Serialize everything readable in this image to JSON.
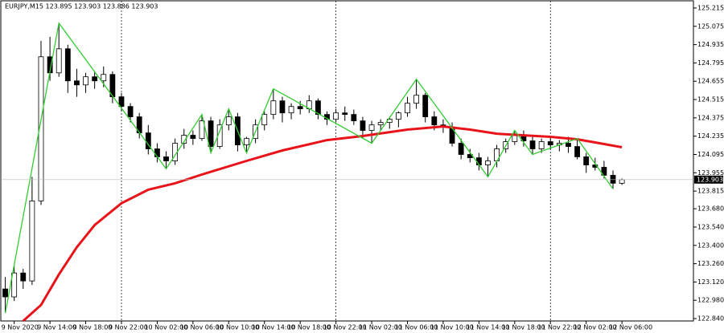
{
  "chart_data": {
    "type": "candlestick",
    "title": "EURJPY,M15  123.895 123.903 123.886 123.903",
    "current_price": {
      "value": 123.903,
      "label": "123.903"
    },
    "ylim": [
      122.822,
      125.27
    ],
    "yticks": [
      125.215,
      125.075,
      124.935,
      124.795,
      124.655,
      124.515,
      124.375,
      124.235,
      124.095,
      123.955,
      123.815,
      {
        "value": 123.68,
        "label": "123.680"
      },
      {
        "value": 123.54,
        "label": "123.540"
      },
      {
        "value": 123.4,
        "label": "123.400"
      },
      {
        "value": 123.26,
        "label": "123.260"
      },
      {
        "value": 123.12,
        "label": "123.120"
      },
      {
        "value": 122.98,
        "label": "122.980"
      },
      {
        "value": 122.84,
        "label": "122.840"
      }
    ],
    "xlim": [
      -0.5,
      77
    ],
    "xticks": [
      {
        "value": 1,
        "label": "9 Nov 2020"
      },
      {
        "value": 5,
        "label": "9 Nov 14:00"
      },
      {
        "value": 9,
        "label": "9 Nov 18:00"
      },
      {
        "value": 13,
        "label": "9 Nov 22:00"
      },
      {
        "value": 17,
        "label": "10 Nov 02:00"
      },
      {
        "value": 21,
        "label": "10 Nov 06:00"
      },
      {
        "value": 25,
        "label": "10 Nov 10:00"
      },
      {
        "value": 29,
        "label": "10 Nov 14:00"
      },
      {
        "value": 33,
        "label": "10 Nov 18:00"
      },
      {
        "value": 37,
        "label": "10 Nov 22:00"
      },
      {
        "value": 41,
        "label": "11 Nov 02:00"
      },
      {
        "value": 45,
        "label": "11 Nov 06:00"
      },
      {
        "value": 49,
        "label": "11 Nov 10:00"
      },
      {
        "value": 53,
        "label": "11 Nov 14:00"
      },
      {
        "value": 57,
        "label": "11 Nov 18:00"
      },
      {
        "value": 61,
        "label": "11 Nov 22:00"
      },
      {
        "value": 65,
        "label": "12 Nov 02:00"
      },
      {
        "value": 69,
        "label": "12 Nov 06:00"
      }
    ],
    "separators": [
      13,
      37,
      61
    ],
    "candle_color": "#000000",
    "open": [
      123.067,
      123.006,
      123.189,
      123.128,
      123.74,
      124.842,
      124.719,
      124.903,
      124.658,
      124.627,
      124.689,
      124.658,
      124.707,
      124.536,
      124.462,
      124.383,
      124.26,
      124.138,
      124.077,
      124.046,
      124.181,
      124.242,
      124.217,
      124.352,
      124.156,
      124.321,
      124.383,
      124.168,
      124.217,
      124.321,
      124.401,
      124.505,
      124.413,
      124.462,
      124.444,
      124.505,
      124.401,
      124.364,
      124.413,
      124.401,
      124.352,
      124.279,
      124.321,
      124.34,
      124.364,
      124.413,
      124.487,
      124.548,
      124.383,
      124.321,
      124.303,
      124.181,
      124.095,
      124.07,
      124.015,
      124.046,
      124.138,
      124.193,
      124.242,
      124.199,
      124.138,
      124.193,
      124.168,
      124.181,
      124.156,
      124.077,
      124.015,
      123.997,
      123.936,
      123.875
    ],
    "high": [
      123.159,
      123.25,
      123.22,
      123.924,
      124.964,
      124.995,
      125.099,
      124.934,
      124.75,
      124.719,
      124.731,
      124.768,
      124.731,
      124.566,
      124.487,
      124.413,
      124.321,
      124.181,
      124.119,
      124.217,
      124.291,
      124.279,
      124.401,
      124.383,
      124.364,
      124.444,
      124.413,
      124.23,
      124.364,
      124.425,
      124.597,
      124.536,
      124.487,
      124.505,
      124.548,
      124.523,
      124.425,
      124.444,
      124.462,
      124.438,
      124.383,
      124.352,
      124.364,
      124.383,
      124.425,
      124.536,
      124.67,
      124.566,
      124.425,
      124.364,
      124.34,
      124.217,
      124.138,
      124.107,
      124.077,
      124.168,
      124.217,
      124.279,
      124.279,
      124.23,
      124.217,
      124.23,
      124.205,
      124.23,
      124.217,
      124.107,
      124.07,
      124.046,
      123.973,
      123.911
    ],
    "low": [
      122.883,
      122.975,
      123.067,
      123.097,
      123.709,
      124.658,
      124.689,
      124.566,
      124.536,
      124.566,
      124.597,
      124.609,
      124.487,
      124.425,
      124.34,
      124.217,
      124.095,
      124.034,
      123.985,
      124.015,
      124.138,
      124.168,
      124.199,
      124.107,
      124.138,
      124.279,
      124.119,
      124.107,
      124.181,
      124.279,
      124.364,
      124.34,
      124.364,
      124.401,
      124.413,
      124.364,
      124.321,
      124.34,
      124.352,
      124.321,
      124.217,
      124.181,
      124.279,
      124.291,
      124.303,
      124.383,
      124.444,
      124.34,
      124.279,
      124.26,
      124.156,
      124.058,
      124.034,
      123.973,
      123.924,
      123.997,
      124.107,
      124.168,
      124.156,
      124.095,
      124.107,
      124.132,
      124.119,
      124.107,
      124.058,
      123.954,
      123.973,
      123.911,
      123.832,
      123.862
    ],
    "close": [
      123.006,
      123.189,
      123.128,
      123.74,
      124.842,
      124.719,
      124.903,
      124.658,
      124.627,
      124.689,
      124.658,
      124.707,
      124.536,
      124.462,
      124.383,
      124.26,
      124.138,
      124.077,
      124.046,
      124.181,
      124.242,
      124.217,
      124.352,
      124.156,
      124.321,
      124.383,
      124.168,
      124.217,
      124.321,
      124.401,
      124.505,
      124.413,
      124.462,
      124.444,
      124.505,
      124.401,
      124.364,
      124.413,
      124.401,
      124.352,
      124.279,
      124.321,
      124.34,
      124.364,
      124.413,
      124.487,
      124.548,
      124.383,
      124.321,
      124.303,
      124.181,
      124.095,
      124.07,
      124.015,
      124.046,
      124.138,
      124.193,
      124.242,
      124.199,
      124.138,
      124.193,
      124.168,
      124.181,
      124.156,
      124.077,
      124.015,
      123.997,
      123.936,
      123.875,
      123.903
    ],
    "lines": [
      {
        "color": "#e8141a",
        "x": [
          2,
          4,
          6,
          8,
          10,
          13,
          16,
          19,
          22,
          27,
          31,
          36,
          40,
          45,
          49,
          52,
          55,
          58,
          61,
          64,
          66,
          69
        ],
        "values": [
          122.822,
          122.944,
          123.177,
          123.385,
          123.556,
          123.722,
          123.826,
          123.875,
          123.942,
          124.046,
          124.126,
          124.205,
          124.236,
          124.285,
          124.309,
          124.285,
          124.254,
          124.242,
          124.23,
          124.211,
          124.187,
          124.15
        ]
      },
      {
        "color": "#33cc33",
        "x": [
          0,
          6,
          18,
          22,
          23,
          25,
          27,
          30,
          41,
          46,
          54,
          57,
          59,
          64,
          68
        ],
        "values": [
          122.883,
          125.099,
          123.985,
          124.401,
          124.107,
          124.444,
          124.107,
          124.597,
          124.181,
          124.67,
          123.924,
          124.279,
          124.095,
          124.217,
          123.832
        ]
      }
    ]
  }
}
